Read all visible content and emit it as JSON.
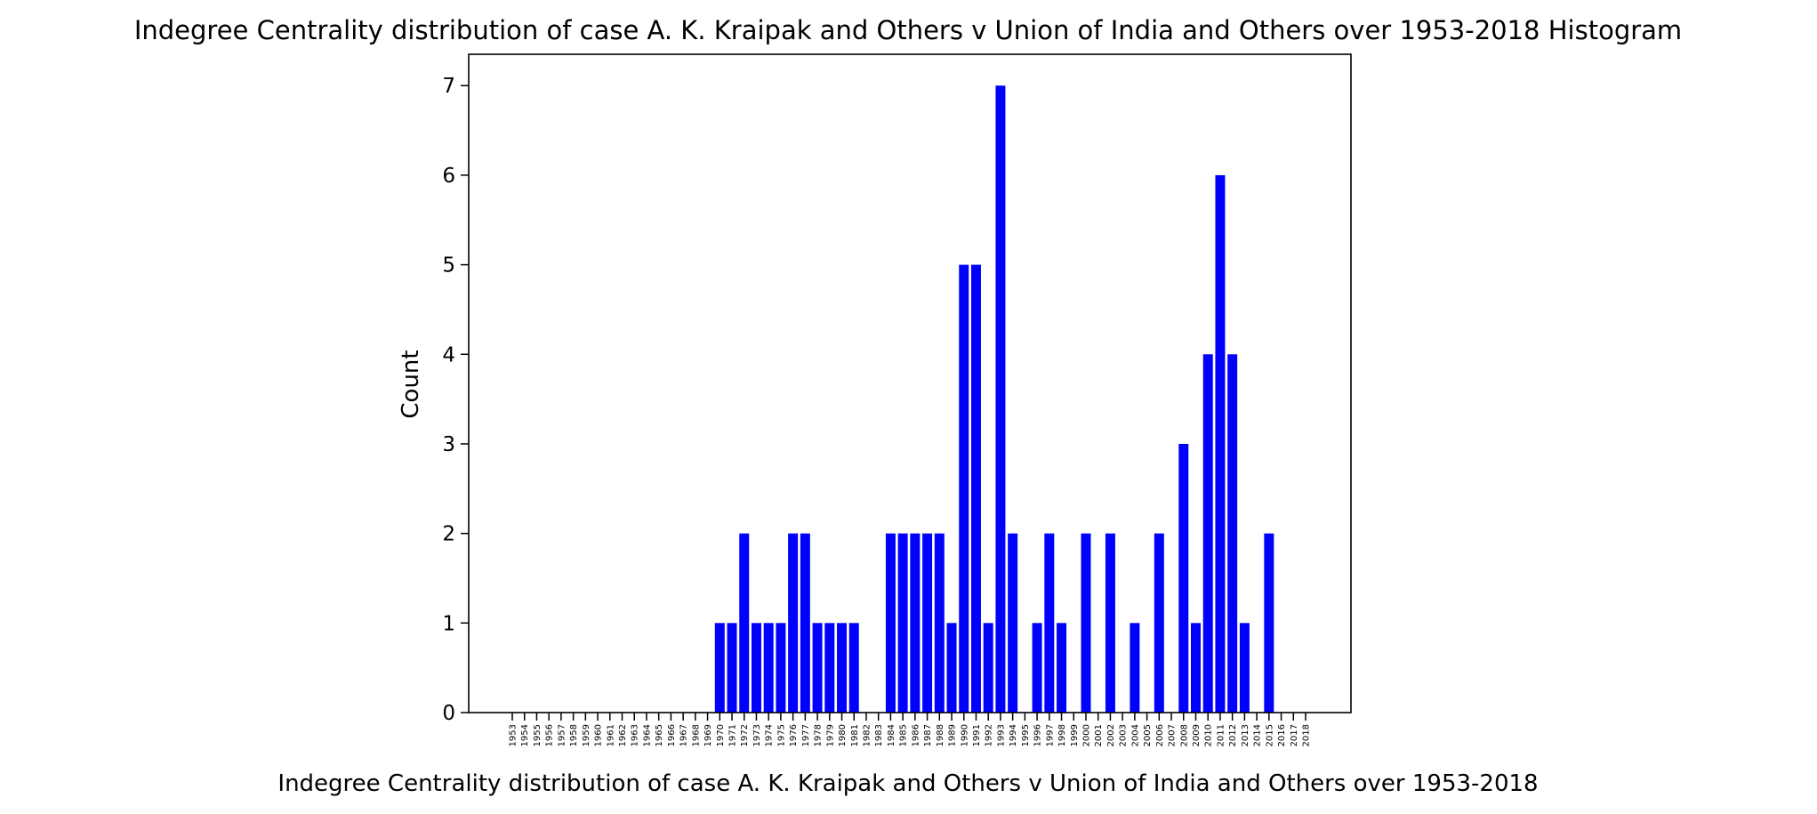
{
  "chart_data": {
    "type": "bar",
    "title": "Indegree Centrality distribution of case A. K. Kraipak and Others v Union of India and Others over 1953-2018 Histogram",
    "xlabel": "Indegree Centrality distribution of case A. K. Kraipak and Others v Union of India and Others over 1953-2018",
    "ylabel": "Count",
    "ylim": [
      0,
      7.35
    ],
    "yticks": [
      "0",
      "1",
      "2",
      "3",
      "4",
      "5",
      "6",
      "7"
    ],
    "categories": [
      "1953",
      "1954",
      "1955",
      "1956",
      "1957",
      "1958",
      "1959",
      "1960",
      "1961",
      "1962",
      "1963",
      "1964",
      "1965",
      "1966",
      "1967",
      "1968",
      "1969",
      "1970",
      "1971",
      "1972",
      "1973",
      "1974",
      "1975",
      "1976",
      "1977",
      "1978",
      "1979",
      "1980",
      "1981",
      "1982",
      "1983",
      "1984",
      "1985",
      "1986",
      "1987",
      "1988",
      "1989",
      "1990",
      "1991",
      "1992",
      "1993",
      "1994",
      "1995",
      "1996",
      "1997",
      "1998",
      "1999",
      "2000",
      "2001",
      "2002",
      "2003",
      "2004",
      "2005",
      "2006",
      "2007",
      "2008",
      "2009",
      "2010",
      "2011",
      "2012",
      "2013",
      "2014",
      "2015",
      "2016",
      "2017",
      "2018"
    ],
    "values": [
      0,
      0,
      0,
      0,
      0,
      0,
      0,
      0,
      0,
      0,
      0,
      0,
      0,
      0,
      0,
      0,
      0,
      1,
      1,
      2,
      1,
      1,
      1,
      2,
      2,
      1,
      1,
      1,
      1,
      0,
      0,
      2,
      2,
      2,
      2,
      2,
      1,
      5,
      5,
      1,
      7,
      2,
      0,
      1,
      2,
      1,
      0,
      2,
      0,
      2,
      0,
      1,
      0,
      2,
      0,
      3,
      1,
      4,
      6,
      4,
      1,
      0,
      2,
      0,
      0,
      0
    ],
    "bar_color": "#0000ff",
    "grid": false,
    "legend": "none"
  }
}
